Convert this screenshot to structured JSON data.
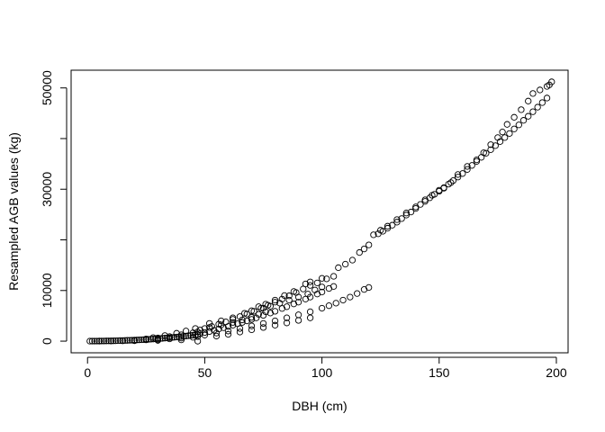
{
  "chart_data": {
    "type": "scatter",
    "title": "",
    "xlabel": "DBH (cm)",
    "ylabel": "Resampled AGB values (kg)",
    "xlim": [
      -7,
      205
    ],
    "ylim": [
      -2300,
      53500
    ],
    "x_ticks": [
      0,
      50,
      100,
      150,
      200
    ],
    "y_ticks": [
      0,
      10000,
      20000,
      30000,
      40000,
      50000
    ],
    "y_tick_labels": [
      "0",
      "10000",
      "",
      "30000",
      "",
      "50000"
    ],
    "grid": false,
    "legend": "none",
    "marker": "open-circle",
    "marker_color": "#000000",
    "series": [
      {
        "name": "",
        "points": [
          [
            1,
            5
          ],
          [
            2,
            8
          ],
          [
            3,
            12
          ],
          [
            4,
            16
          ],
          [
            5,
            22
          ],
          [
            6,
            28
          ],
          [
            7,
            35
          ],
          [
            8,
            42
          ],
          [
            9,
            50
          ],
          [
            10,
            60
          ],
          [
            11,
            70
          ],
          [
            12,
            82
          ],
          [
            13,
            95
          ],
          [
            14,
            108
          ],
          [
            15,
            122
          ],
          [
            16,
            138
          ],
          [
            17,
            155
          ],
          [
            18,
            172
          ],
          [
            19,
            190
          ],
          [
            20,
            210
          ],
          [
            21,
            232
          ],
          [
            22,
            255
          ],
          [
            23,
            278
          ],
          [
            24,
            302
          ],
          [
            25,
            330
          ],
          [
            26,
            358
          ],
          [
            27,
            388
          ],
          [
            28,
            418
          ],
          [
            29,
            450
          ],
          [
            30,
            485
          ],
          [
            31,
            520
          ],
          [
            32,
            556
          ],
          [
            33,
            595
          ],
          [
            34,
            635
          ],
          [
            35,
            676
          ],
          [
            36,
            718
          ],
          [
            37,
            762
          ],
          [
            38,
            808
          ],
          [
            39,
            855
          ],
          [
            40,
            904
          ],
          [
            41,
            955
          ],
          [
            42,
            1008
          ],
          [
            43,
            1062
          ],
          [
            44,
            1118
          ],
          [
            45,
            1175
          ],
          [
            46,
            1235
          ],
          [
            47,
            1298
          ],
          [
            20,
            120
          ],
          [
            25,
            250
          ],
          [
            30,
            320
          ],
          [
            35,
            450
          ],
          [
            40,
            600
          ],
          [
            45,
            760
          ],
          [
            47,
            900
          ],
          [
            25,
            420
          ],
          [
            30,
            620
          ],
          [
            35,
            900
          ],
          [
            40,
            1250
          ],
          [
            45,
            1650
          ],
          [
            47,
            1850
          ],
          [
            28,
            700
          ],
          [
            33,
            1100
          ],
          [
            38,
            1550
          ],
          [
            42,
            2000
          ],
          [
            46,
            2500
          ],
          [
            5,
            10
          ],
          [
            10,
            30
          ],
          [
            15,
            60
          ],
          [
            20,
            90
          ],
          [
            30,
            150
          ],
          [
            40,
            250
          ],
          [
            47,
            0
          ],
          [
            48,
            1500
          ],
          [
            50,
            1700
          ],
          [
            52,
            1900
          ],
          [
            54,
            2150
          ],
          [
            56,
            2400
          ],
          [
            58,
            2650
          ],
          [
            60,
            2900
          ],
          [
            62,
            3150
          ],
          [
            64,
            3450
          ],
          [
            66,
            3700
          ],
          [
            68,
            4000
          ],
          [
            70,
            4300
          ],
          [
            72,
            4600
          ],
          [
            75,
            5100
          ],
          [
            78,
            5550
          ],
          [
            80,
            5900
          ],
          [
            83,
            6450
          ],
          [
            85,
            6800
          ],
          [
            88,
            7350
          ],
          [
            90,
            7700
          ],
          [
            93,
            8300
          ],
          [
            95,
            8700
          ],
          [
            98,
            9300
          ],
          [
            100,
            9700
          ],
          [
            103,
            10400
          ],
          [
            105,
            10800
          ],
          [
            48,
            2200
          ],
          [
            50,
            2500
          ],
          [
            53,
            2900
          ],
          [
            56,
            3350
          ],
          [
            59,
            3800
          ],
          [
            62,
            4300
          ],
          [
            65,
            4850
          ],
          [
            68,
            5350
          ],
          [
            71,
            5900
          ],
          [
            74,
            6500
          ],
          [
            77,
            7100
          ],
          [
            80,
            7700
          ],
          [
            83,
            8300
          ],
          [
            86,
            8950
          ],
          [
            89,
            9600
          ],
          [
            92,
            10300
          ],
          [
            95,
            11000
          ],
          [
            98,
            11500
          ],
          [
            102,
            12300
          ],
          [
            105,
            12800
          ],
          [
            50,
            1200
          ],
          [
            55,
            1600
          ],
          [
            60,
            2000
          ],
          [
            65,
            2500
          ],
          [
            70,
            3000
          ],
          [
            75,
            3500
          ],
          [
            80,
            4000
          ],
          [
            85,
            4600
          ],
          [
            90,
            5200
          ],
          [
            95,
            5800
          ],
          [
            100,
            6500
          ],
          [
            103,
            7000
          ],
          [
            106,
            7500
          ],
          [
            109,
            8100
          ],
          [
            112,
            8700
          ],
          [
            115,
            9400
          ],
          [
            118,
            10200
          ],
          [
            120,
            10600
          ],
          [
            55,
            1000
          ],
          [
            60,
            1350
          ],
          [
            65,
            1800
          ],
          [
            70,
            2250
          ],
          [
            75,
            2700
          ],
          [
            80,
            3150
          ],
          [
            85,
            3600
          ],
          [
            90,
            4100
          ],
          [
            95,
            4600
          ],
          [
            52,
            2700
          ],
          [
            57,
            3200
          ],
          [
            62,
            3700
          ],
          [
            66,
            4200
          ],
          [
            70,
            4700
          ],
          [
            73,
            5300
          ],
          [
            76,
            5800
          ],
          [
            75,
            6500
          ],
          [
            78,
            6900
          ],
          [
            82,
            7500
          ],
          [
            86,
            8100
          ],
          [
            90,
            8700
          ],
          [
            94,
            9300
          ],
          [
            97,
            10100
          ],
          [
            100,
            10700
          ],
          [
            52,
            3500
          ],
          [
            57,
            4000
          ],
          [
            62,
            4600
          ],
          [
            67,
            5500
          ],
          [
            70,
            6000
          ],
          [
            73,
            6800
          ],
          [
            76,
            7300
          ],
          [
            80,
            8100
          ],
          [
            84,
            9000
          ],
          [
            88,
            9800
          ],
          [
            93,
            11300
          ],
          [
            95,
            11700
          ],
          [
            100,
            12400
          ],
          [
            107,
            14500
          ],
          [
            110,
            15200
          ],
          [
            113,
            16000
          ],
          [
            116,
            17500
          ],
          [
            118,
            18200
          ],
          [
            120,
            19000
          ],
          [
            124,
            21200
          ],
          [
            126,
            21700
          ],
          [
            128,
            22300
          ],
          [
            130,
            22900
          ],
          [
            132,
            23500
          ],
          [
            134,
            24200
          ],
          [
            136,
            24900
          ],
          [
            138,
            25500
          ],
          [
            140,
            26200
          ],
          [
            142,
            27000
          ],
          [
            144,
            27600
          ],
          [
            146,
            28300
          ],
          [
            148,
            29000
          ],
          [
            150,
            29600
          ],
          [
            152,
            30300
          ],
          [
            154,
            31000
          ],
          [
            156,
            31700
          ],
          [
            158,
            32400
          ],
          [
            160,
            33100
          ],
          [
            162,
            33900
          ],
          [
            164,
            34700
          ],
          [
            166,
            35500
          ],
          [
            168,
            36300
          ],
          [
            170,
            37100
          ],
          [
            172,
            37800
          ],
          [
            174,
            38600
          ],
          [
            176,
            39400
          ],
          [
            178,
            40200
          ],
          [
            180,
            41000
          ],
          [
            182,
            41900
          ],
          [
            184,
            42700
          ],
          [
            186,
            43600
          ],
          [
            188,
            44400
          ],
          [
            190,
            45300
          ],
          [
            192,
            46200
          ],
          [
            194,
            47100
          ],
          [
            196,
            48000
          ],
          [
            198,
            51200
          ],
          [
            197,
            50600
          ],
          [
            196,
            50300
          ],
          [
            193,
            49600
          ],
          [
            190,
            48900
          ],
          [
            188,
            47400
          ],
          [
            185,
            45700
          ],
          [
            182,
            44200
          ],
          [
            179,
            42800
          ],
          [
            177,
            41300
          ],
          [
            175,
            40200
          ],
          [
            172,
            38800
          ],
          [
            169,
            37200
          ],
          [
            166,
            35800
          ],
          [
            162,
            34500
          ],
          [
            158,
            32900
          ],
          [
            155,
            31300
          ],
          [
            152,
            30200
          ],
          [
            150,
            29800
          ],
          [
            147,
            28800
          ],
          [
            144,
            27900
          ],
          [
            140,
            26500
          ],
          [
            136,
            25300
          ],
          [
            132,
            24000
          ],
          [
            128,
            22700
          ],
          [
            125,
            21900
          ],
          [
            122,
            21000
          ]
        ]
      }
    ]
  }
}
